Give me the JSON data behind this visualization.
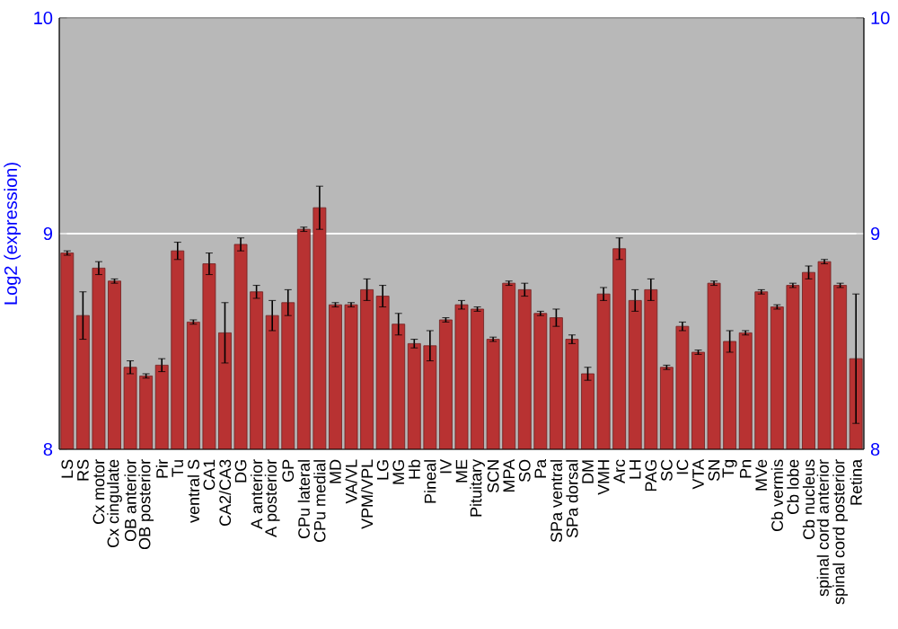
{
  "chart_data": {
    "type": "bar",
    "ylabel": "Log2 (expression)",
    "categories": [
      "LS",
      "RS",
      "Cx motor",
      "Cx cingulate",
      "OB anterior",
      "OB posterior",
      "Pir",
      "Tu",
      "ventral S",
      "CA1",
      "CA2/CA3",
      "DG",
      "A anterior",
      "A posterior",
      "GP",
      "CPu lateral",
      "CPu medial",
      "MD",
      "VA/VL",
      "VPM/VPL",
      "LG",
      "MG",
      "Hb",
      "Pineal",
      "IV",
      "ME",
      "Pituitary",
      "SCN",
      "MPA",
      "SO",
      "Pa",
      "SPa ventral",
      "SPa dorsal",
      "DM",
      "VMH",
      "Arc",
      "LH",
      "PAG",
      "SC",
      "IC",
      "VTA",
      "SN",
      "Tg",
      "Pn",
      "MVe",
      "Cb vermis",
      "Cb lobe",
      "Cb nucleus",
      "spinal cord anterior",
      "spinal cord posterior",
      "Retina"
    ],
    "values": [
      8.91,
      8.62,
      8.84,
      8.78,
      8.38,
      8.34,
      8.39,
      8.92,
      8.59,
      8.86,
      8.54,
      8.95,
      8.73,
      8.62,
      8.68,
      9.02,
      9.12,
      8.67,
      8.67,
      8.74,
      8.71,
      8.58,
      8.49,
      8.48,
      8.6,
      8.67,
      8.65,
      8.51,
      8.77,
      8.74,
      8.63,
      8.61,
      8.51,
      8.35,
      8.72,
      8.93,
      8.69,
      8.74,
      8.38,
      8.57,
      8.45,
      8.77,
      8.5,
      8.54,
      8.73,
      8.66,
      8.76,
      8.82,
      8.87,
      8.76,
      8.42
    ],
    "errors": [
      0.01,
      0.11,
      0.03,
      0.01,
      0.03,
      0.01,
      0.03,
      0.04,
      0.01,
      0.05,
      0.14,
      0.03,
      0.03,
      0.07,
      0.06,
      0.01,
      0.1,
      0.01,
      0.01,
      0.05,
      0.05,
      0.05,
      0.02,
      0.07,
      0.01,
      0.02,
      0.01,
      0.01,
      0.01,
      0.03,
      0.01,
      0.04,
      0.02,
      0.03,
      0.03,
      0.05,
      0.05,
      0.05,
      0.01,
      0.02,
      0.01,
      0.01,
      0.05,
      0.01,
      0.01,
      0.01,
      0.01,
      0.03,
      0.01,
      0.01,
      0.3
    ],
    "color": "#b83232",
    "ylim": [
      8,
      10
    ],
    "yticks": [
      8,
      9,
      10
    ],
    "y2lim": [
      8,
      10
    ],
    "y2ticks": [
      8,
      9,
      10
    ],
    "grid": "y"
  }
}
